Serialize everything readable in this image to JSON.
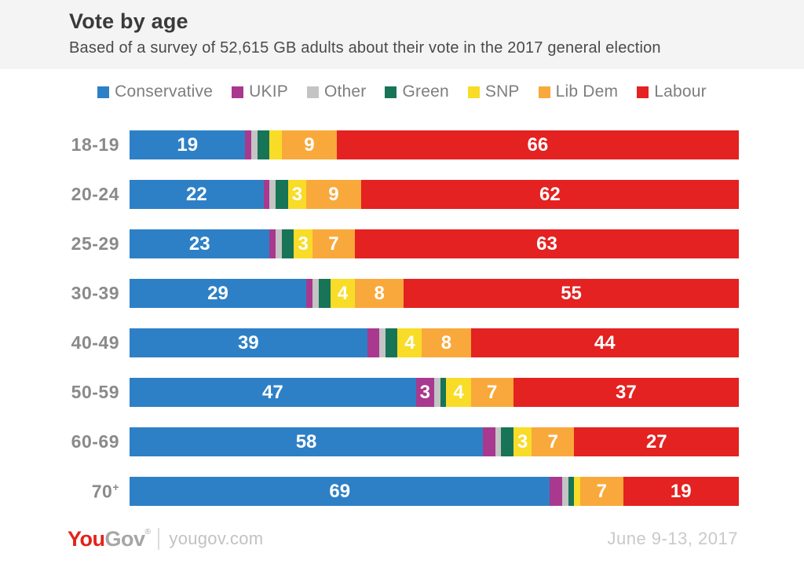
{
  "header": {
    "title": "Vote by age",
    "subtitle": "Based of a survey of 52,615 GB adults about their vote in the 2017 general election"
  },
  "chart_data": {
    "type": "bar",
    "stacked": true,
    "orientation": "horizontal",
    "unit": "percent",
    "xlim": [
      0,
      100
    ],
    "grid": false,
    "legend_position": "top",
    "label_min_value": 3,
    "categories": [
      "18-19",
      "20-24",
      "25-29",
      "30-39",
      "40-49",
      "50-59",
      "60-69",
      "70+"
    ],
    "series": [
      {
        "name": "Conservative",
        "color": "#2E80C6",
        "values": [
          19,
          22,
          23,
          29,
          39,
          47,
          58,
          69
        ]
      },
      {
        "name": "UKIP",
        "color": "#A8398F",
        "values": [
          1,
          1,
          1,
          1,
          2,
          3,
          2,
          2
        ]
      },
      {
        "name": "Other",
        "color": "#C4C4C4",
        "values": [
          1,
          1,
          1,
          1,
          1,
          1,
          1,
          1
        ]
      },
      {
        "name": "Green",
        "color": "#177457",
        "values": [
          2,
          2,
          2,
          2,
          2,
          1,
          2,
          1
        ]
      },
      {
        "name": "SNP",
        "color": "#F8DC28",
        "values": [
          2,
          3,
          3,
          4,
          4,
          4,
          3,
          1
        ]
      },
      {
        "name": "Lib Dem",
        "color": "#F9A93B",
        "values": [
          9,
          9,
          7,
          8,
          8,
          7,
          7,
          7
        ]
      },
      {
        "name": "Labour",
        "color": "#E32221",
        "values": [
          66,
          62,
          63,
          55,
          44,
          37,
          27,
          19
        ]
      }
    ]
  },
  "footer": {
    "logo_you": "You",
    "logo_gov": "Gov",
    "logo_reg": "®",
    "site": "yougov.com",
    "date": "June 9-13, 2017",
    "logo_red": "#E32219",
    "logo_gray": "#A6A6A6"
  }
}
